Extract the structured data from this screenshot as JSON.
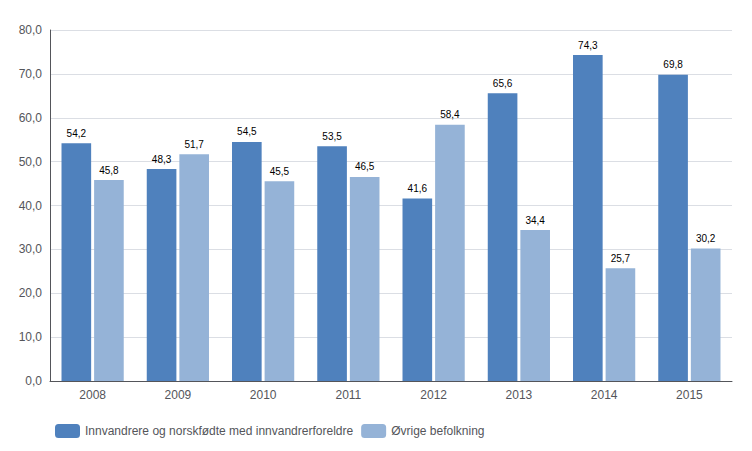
{
  "chart_data": {
    "type": "bar",
    "categories": [
      "2008",
      "2009",
      "2010",
      "2011",
      "2012",
      "2013",
      "2014",
      "2015"
    ],
    "series": [
      {
        "name": "Innvandrere og norskfødte med innvandrerforeldre",
        "color": "#4F81BD",
        "values": [
          54.2,
          48.3,
          54.5,
          53.5,
          41.6,
          65.6,
          74.3,
          69.8
        ],
        "value_labels": [
          "54,2",
          "48,3",
          "54,5",
          "53,5",
          "41,6",
          "65,6",
          "74,3",
          "69,8"
        ]
      },
      {
        "name": "Øvrige befolkning",
        "color": "#95B3D7",
        "values": [
          45.8,
          51.7,
          45.5,
          46.5,
          58.4,
          34.4,
          25.7,
          30.2
        ],
        "value_labels": [
          "45,8",
          "51,7",
          "45,5",
          "46,5",
          "58,4",
          "34,4",
          "25,7",
          "30,2"
        ]
      }
    ],
    "ylim": [
      0,
      80
    ],
    "yticks": [
      {
        "value": 0,
        "label": "0,0"
      },
      {
        "value": 10,
        "label": "10,0"
      },
      {
        "value": 20,
        "label": "20,0"
      },
      {
        "value": 30,
        "label": "30,0"
      },
      {
        "value": 40,
        "label": "40,0"
      },
      {
        "value": 50,
        "label": "50,0"
      },
      {
        "value": 60,
        "label": "60,0"
      },
      {
        "value": 70,
        "label": "70,0"
      },
      {
        "value": 80,
        "label": "80,0"
      }
    ],
    "grid": true,
    "legend": "bottom left",
    "data_labels": true
  }
}
